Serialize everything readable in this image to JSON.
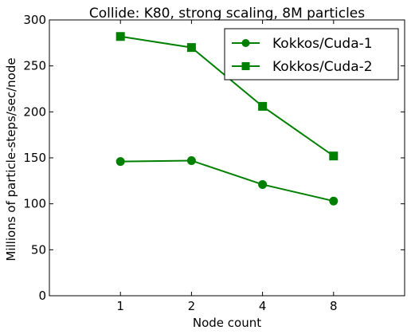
{
  "chart_data": {
    "type": "line",
    "title": "Collide: K80, strong scaling, 8M particles",
    "xlabel": "Node count",
    "ylabel": "Millions of particle-steps/sec/node",
    "categories": [
      "1",
      "2",
      "4",
      "8"
    ],
    "ylim": [
      0,
      300
    ],
    "yticks": [
      0,
      50,
      100,
      150,
      200,
      250,
      300
    ],
    "grid": false,
    "legend_position": "top-right",
    "series": [
      {
        "name": "Kokkos/Cuda-1",
        "marker": "circle",
        "color": "#008000",
        "values": [
          146,
          147,
          121,
          103
        ]
      },
      {
        "name": "Kokkos/Cuda-2",
        "marker": "square",
        "color": "#008000",
        "values": [
          282,
          270,
          206,
          152
        ]
      }
    ]
  }
}
